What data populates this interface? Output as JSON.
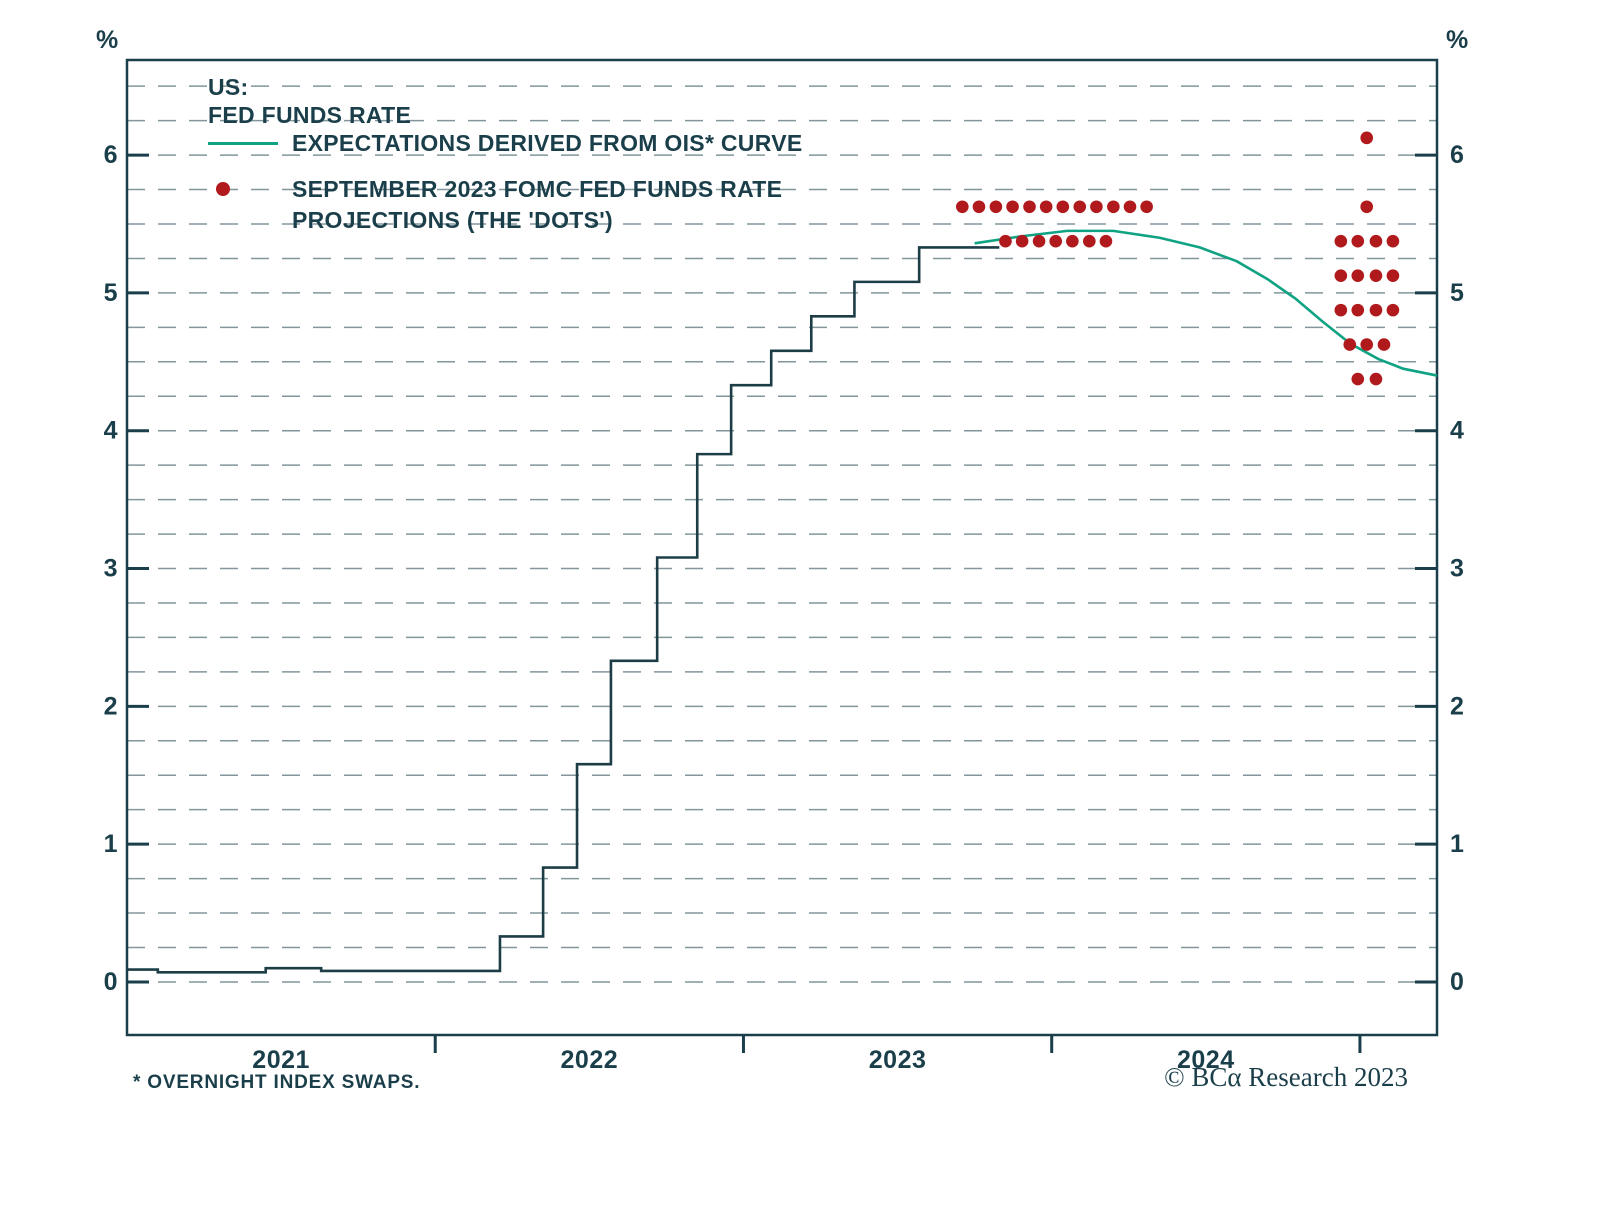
{
  "colors": {
    "ink": "#1b3f4a",
    "fed_line": "#1d3d46",
    "ois_line": "#0fa383",
    "dot_red": "#b11a1c"
  },
  "legend": {
    "country": "US:",
    "fed_funds": "FED FUNDS RATE",
    "ois": "EXPECTATIONS DERIVED FROM OIS* CURVE",
    "dots_line1": "SEPTEMBER 2023 FOMC FED FUNDS RATE",
    "dots_line2": "PROJECTIONS (THE 'DOTS')"
  },
  "footnote": "* OVERNIGHT INDEX SWAPS.",
  "credit": "© BCα Research 2023",
  "chart_data": {
    "type": "line",
    "title": "US: FED FUNDS RATE",
    "unit": "%",
    "xlabel": "",
    "ylabel": "%",
    "x_domain": [
      2021.0,
      2025.25
    ],
    "y_domain": [
      -0.385,
      6.69
    ],
    "y_ticks": [
      0,
      1,
      2,
      3,
      4,
      5,
      6
    ],
    "grid_step": 0.25,
    "grid_max": 6.5,
    "grid_on": true,
    "legend_position": "top-left-inside",
    "x_year_ticks": [
      2022,
      2023,
      2024,
      2025
    ],
    "x_year_labels": [
      {
        "label": "2021",
        "x": 2021.5
      },
      {
        "label": "2022",
        "x": 2022.5
      },
      {
        "label": "2023",
        "x": 2023.5
      },
      {
        "label": "2024",
        "x": 2024.5
      }
    ],
    "series": [
      {
        "name": "FED FUNDS RATE",
        "type": "step",
        "color": "#1d3d46",
        "points": [
          [
            2021.0,
            0.09
          ],
          [
            2021.1,
            0.07
          ],
          [
            2021.45,
            0.1
          ],
          [
            2021.63,
            0.08
          ],
          [
            2022.21,
            0.33
          ],
          [
            2022.35,
            0.83
          ],
          [
            2022.46,
            1.58
          ],
          [
            2022.57,
            2.33
          ],
          [
            2022.72,
            3.08
          ],
          [
            2022.85,
            3.83
          ],
          [
            2022.96,
            4.33
          ],
          [
            2023.09,
            4.58
          ],
          [
            2023.22,
            4.83
          ],
          [
            2023.36,
            5.08
          ],
          [
            2023.57,
            5.33
          ],
          [
            2023.83,
            5.33
          ]
        ]
      },
      {
        "name": "EXPECTATIONS DERIVED FROM OIS* CURVE",
        "type": "line",
        "color": "#0fa383",
        "points": [
          [
            2023.75,
            5.36
          ],
          [
            2023.9,
            5.41
          ],
          [
            2024.05,
            5.45
          ],
          [
            2024.2,
            5.45
          ],
          [
            2024.35,
            5.4
          ],
          [
            2024.48,
            5.33
          ],
          [
            2024.6,
            5.23
          ],
          [
            2024.7,
            5.1
          ],
          [
            2024.79,
            4.96
          ],
          [
            2024.88,
            4.79
          ],
          [
            2024.97,
            4.63
          ],
          [
            2025.06,
            4.52
          ],
          [
            2025.14,
            4.45
          ],
          [
            2025.25,
            4.4
          ]
        ]
      }
    ],
    "dots": {
      "name": "SEPTEMBER 2023 FOMC FED FUNDS RATE PROJECTIONS (THE 'DOTS')",
      "color": "#b11a1c",
      "groups": [
        {
          "projection_year": "2023",
          "value": 5.625,
          "x": [
            2023.71,
            2023.764,
            2023.819,
            2023.873,
            2023.928,
            2023.982,
            2024.036,
            2024.091,
            2024.145,
            2024.2,
            2024.254,
            2024.308
          ]
        },
        {
          "projection_year": "2023",
          "value": 5.375,
          "x": [
            2023.85,
            2023.904,
            2023.959,
            2024.013,
            2024.067,
            2024.122,
            2024.176
          ]
        },
        {
          "projection_year": "2024",
          "value": 6.125,
          "x": [
            2025.022
          ]
        },
        {
          "projection_year": "2024",
          "value": 5.625,
          "x": [
            2025.022
          ]
        },
        {
          "projection_year": "2024",
          "value": 5.375,
          "x": [
            2024.938,
            2024.993,
            2025.052,
            2025.107
          ]
        },
        {
          "projection_year": "2024",
          "value": 5.125,
          "x": [
            2024.938,
            2024.993,
            2025.052,
            2025.107
          ]
        },
        {
          "projection_year": "2024",
          "value": 4.875,
          "x": [
            2024.938,
            2024.993,
            2025.052,
            2025.107
          ]
        },
        {
          "projection_year": "2024",
          "value": 4.625,
          "x": [
            2024.967,
            2025.022,
            2025.078
          ]
        },
        {
          "projection_year": "2024",
          "value": 4.375,
          "x": [
            2024.993,
            2025.052
          ]
        }
      ]
    }
  }
}
